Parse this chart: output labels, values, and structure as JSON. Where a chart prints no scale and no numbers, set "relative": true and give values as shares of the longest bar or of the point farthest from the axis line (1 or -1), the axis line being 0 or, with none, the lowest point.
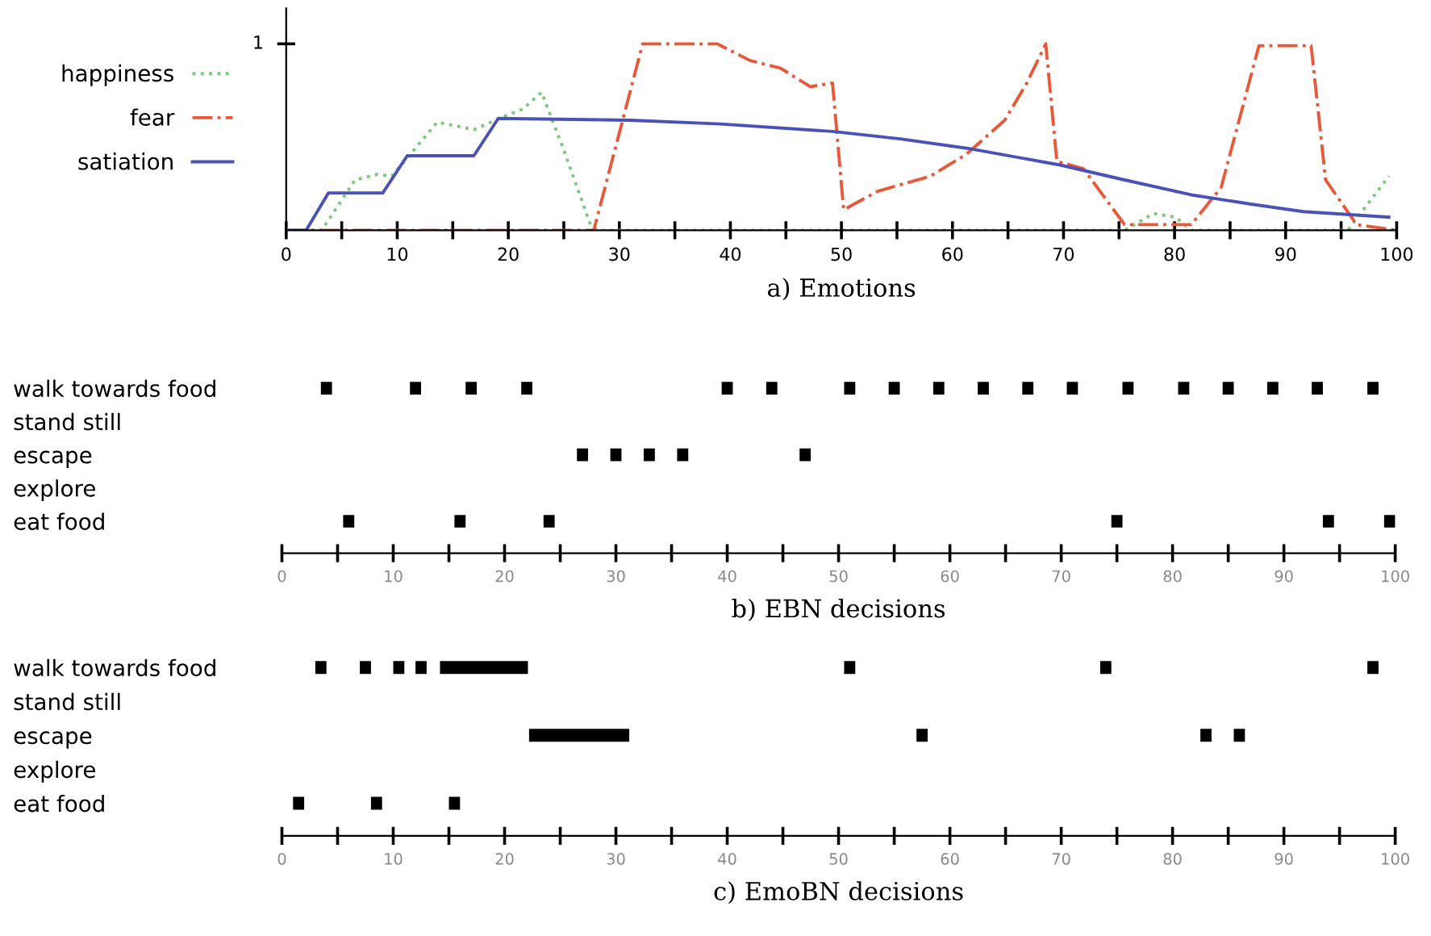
{
  "chart_data": [
    {
      "type": "line",
      "xlabel": "a) Emotions",
      "xlim": [
        0,
        100
      ],
      "relative": true,
      "annotations": [
        "1"
      ],
      "grid": false,
      "xticks": [
        0,
        {
          "value": 5,
          "label": null
        },
        10,
        {
          "value": 15,
          "label": null
        },
        20,
        {
          "value": 25,
          "label": null
        },
        30,
        {
          "value": 35,
          "label": null
        },
        40,
        {
          "value": 45,
          "label": null
        },
        50,
        {
          "value": 55,
          "label": null
        },
        60,
        {
          "value": 65,
          "label": null
        },
        70,
        {
          "value": 75,
          "label": null
        },
        80,
        {
          "value": 85,
          "label": null
        },
        90,
        {
          "value": 95,
          "label": null
        },
        100
      ],
      "legend": "left",
      "series": [
        {
          "name": "happiness",
          "color": "#7ec87e",
          "line_style": "dotted",
          "x": [
            0,
            3.2,
            6.2,
            8.2,
            9.5,
            13.6,
            16.9,
            19.6,
            21.3,
            23,
            25,
            27.4,
            28,
            75.5,
            78.1,
            80.1,
            81.5,
            95.6,
            99.3
          ],
          "values": [
            0,
            0,
            0.27,
            0.3,
            0.29,
            0.58,
            0.54,
            0.61,
            0.65,
            0.74,
            0.43,
            0.03,
            0,
            0,
            0.09,
            0.07,
            0,
            0,
            0.29
          ]
        },
        {
          "name": "fear",
          "color": "#e8593a",
          "line_style": "dashed",
          "x": [
            0,
            27.7,
            32.1,
            38.8,
            41.8,
            44.5,
            47.2,
            49.2,
            50.2,
            53.3,
            58,
            61.3,
            64.7,
            66.7,
            68.4,
            69.4,
            71.8,
            75.5,
            81.5,
            84.2,
            87.6,
            92.3,
            93.6,
            96.4,
            100
          ],
          "values": [
            0,
            0,
            1,
            1,
            0.91,
            0.87,
            0.77,
            0.79,
            0.11,
            0.21,
            0.29,
            0.41,
            0.59,
            0.79,
            1,
            0.37,
            0.33,
            0.03,
            0.03,
            0.23,
            0.99,
            0.99,
            0.27,
            0.03,
            0
          ]
        },
        {
          "name": "satiation",
          "color": "#4a52b8",
          "line_style": "solid",
          "x": [
            0,
            1.8,
            3.8,
            8.7,
            10.9,
            16.9,
            19.1,
            31,
            39.1,
            49.2,
            55.3,
            61.3,
            69.7,
            75.5,
            81.5,
            86.9,
            91.6,
            99.3
          ],
          "values": [
            0,
            0,
            0.2,
            0.2,
            0.4,
            0.4,
            0.6,
            0.59,
            0.57,
            0.53,
            0.49,
            0.44,
            0.35,
            0.27,
            0.19,
            0.14,
            0.1,
            0.07
          ]
        }
      ]
    },
    {
      "type": "bar",
      "orientation": "horizontal",
      "xlabel": "b) EBN decisions",
      "xlim": [
        0,
        100
      ],
      "grid": false,
      "xticks": [
        0,
        {
          "value": 5,
          "label": null
        },
        10,
        {
          "value": 15,
          "label": null
        },
        20,
        {
          "value": 25,
          "label": null
        },
        30,
        {
          "value": 35,
          "label": null
        },
        40,
        {
          "value": 45,
          "label": null
        },
        50,
        {
          "value": 55,
          "label": null
        },
        60,
        {
          "value": 65,
          "label": null
        },
        70,
        {
          "value": 75,
          "label": null
        },
        80,
        {
          "value": 85,
          "label": null
        },
        90,
        {
          "value": 95,
          "label": null
        },
        100
      ],
      "categories": [
        "walk towards food",
        "stand still",
        "escape",
        "explore",
        "eat food"
      ],
      "series": [
        {
          "color": "#000000",
          "base": [
            3.5,
            null,
            26.5,
            null,
            5.5
          ],
          "values": [
            1,
            null,
            1,
            null,
            1
          ]
        },
        {
          "color": "#000000",
          "base": [
            11.5,
            null,
            29.5,
            null,
            15.5
          ],
          "values": [
            1,
            null,
            1,
            null,
            1
          ]
        },
        {
          "color": "#000000",
          "base": [
            16.5,
            null,
            32.5,
            null,
            23.5
          ],
          "values": [
            1,
            null,
            1,
            null,
            1
          ]
        },
        {
          "color": "#000000",
          "base": [
            21.5,
            null,
            35.5,
            null,
            74.5
          ],
          "values": [
            1,
            null,
            1,
            null,
            1
          ]
        },
        {
          "color": "#000000",
          "base": [
            39.5,
            null,
            46.5,
            null,
            93.5
          ],
          "values": [
            1,
            null,
            1,
            null,
            1
          ]
        },
        {
          "color": "#000000",
          "base": [
            43.5,
            null,
            null,
            null,
            99
          ],
          "values": [
            1,
            null,
            null,
            null,
            1
          ]
        },
        {
          "color": "#000000",
          "base": [
            50.5,
            null,
            null,
            null,
            null
          ],
          "values": [
            1,
            null,
            null,
            null,
            null
          ]
        },
        {
          "color": "#000000",
          "base": [
            54.5,
            null,
            null,
            null,
            null
          ],
          "values": [
            1,
            null,
            null,
            null,
            null
          ]
        },
        {
          "color": "#000000",
          "base": [
            58.5,
            null,
            null,
            null,
            null
          ],
          "values": [
            1,
            null,
            null,
            null,
            null
          ]
        },
        {
          "color": "#000000",
          "base": [
            62.5,
            null,
            null,
            null,
            null
          ],
          "values": [
            1,
            null,
            null,
            null,
            null
          ]
        },
        {
          "color": "#000000",
          "base": [
            66.5,
            null,
            null,
            null,
            null
          ],
          "values": [
            1,
            null,
            null,
            null,
            null
          ]
        },
        {
          "color": "#000000",
          "base": [
            70.5,
            null,
            null,
            null,
            null
          ],
          "values": [
            1,
            null,
            null,
            null,
            null
          ]
        },
        {
          "color": "#000000",
          "base": [
            75.5,
            null,
            null,
            null,
            null
          ],
          "values": [
            1,
            null,
            null,
            null,
            null
          ]
        },
        {
          "color": "#000000",
          "base": [
            80.5,
            null,
            null,
            null,
            null
          ],
          "values": [
            1,
            null,
            null,
            null,
            null
          ]
        },
        {
          "color": "#000000",
          "base": [
            84.5,
            null,
            null,
            null,
            null
          ],
          "values": [
            1,
            null,
            null,
            null,
            null
          ]
        },
        {
          "color": "#000000",
          "base": [
            88.5,
            null,
            null,
            null,
            null
          ],
          "values": [
            1,
            null,
            null,
            null,
            null
          ]
        },
        {
          "color": "#000000",
          "base": [
            92.5,
            null,
            null,
            null,
            null
          ],
          "values": [
            1,
            null,
            null,
            null,
            null
          ]
        },
        {
          "color": "#000000",
          "base": [
            97.5,
            null,
            null,
            null,
            null
          ],
          "values": [
            1,
            null,
            null,
            null,
            null
          ]
        }
      ]
    },
    {
      "type": "bar",
      "orientation": "horizontal",
      "xlabel": "c) EmoBN decisions",
      "xlim": [
        0,
        100
      ],
      "grid": false,
      "xticks": [
        0,
        {
          "value": 5,
          "label": null
        },
        10,
        {
          "value": 15,
          "label": null
        },
        20,
        {
          "value": 25,
          "label": null
        },
        30,
        {
          "value": 35,
          "label": null
        },
        40,
        {
          "value": 45,
          "label": null
        },
        50,
        {
          "value": 55,
          "label": null
        },
        60,
        {
          "value": 65,
          "label": null
        },
        70,
        {
          "value": 75,
          "label": null
        },
        80,
        {
          "value": 85,
          "label": null
        },
        90,
        {
          "value": 95,
          "label": null
        },
        100
      ],
      "categories": [
        "walk towards food",
        "stand still",
        "escape",
        "explore",
        "eat food"
      ],
      "series": [
        {
          "color": "#000000",
          "base": [
            3,
            null,
            22.2,
            null,
            1
          ],
          "values": [
            1,
            null,
            9,
            null,
            1
          ]
        },
        {
          "color": "#000000",
          "base": [
            7,
            null,
            57,
            null,
            8
          ],
          "values": [
            1,
            null,
            1,
            null,
            1
          ]
        },
        {
          "color": "#000000",
          "base": [
            10,
            null,
            82.5,
            null,
            15
          ],
          "values": [
            1,
            null,
            1,
            null,
            1
          ]
        },
        {
          "color": "#000000",
          "base": [
            12,
            null,
            85.5,
            null,
            null
          ],
          "values": [
            1,
            null,
            1,
            null,
            null
          ]
        },
        {
          "color": "#000000",
          "base": [
            14.2,
            null,
            null,
            null,
            null
          ],
          "values": [
            7.9,
            null,
            null,
            null,
            null
          ]
        },
        {
          "color": "#000000",
          "base": [
            50.5,
            null,
            null,
            null,
            null
          ],
          "values": [
            1,
            null,
            null,
            null,
            null
          ]
        },
        {
          "color": "#000000",
          "base": [
            73.5,
            null,
            null,
            null,
            null
          ],
          "values": [
            1,
            null,
            null,
            null,
            null
          ]
        },
        {
          "color": "#000000",
          "base": [
            97.5,
            null,
            null,
            null,
            null
          ],
          "values": [
            1,
            null,
            null,
            null,
            null
          ]
        }
      ]
    }
  ]
}
